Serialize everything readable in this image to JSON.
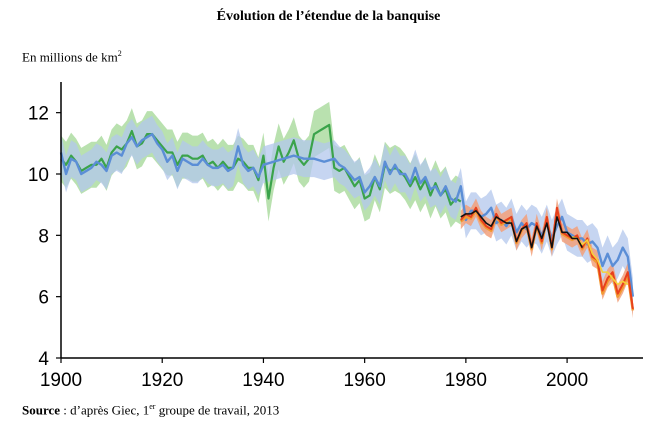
{
  "header": {
    "title": "Évolution de l’étendue de la banquise",
    "unit_prefix": "En millions  de km",
    "unit_sup": "2"
  },
  "footer": {
    "source_label": "Source",
    "source_sep": " : ",
    "source_text_a": "d’après Giec, 1",
    "source_sup": "er",
    "source_text_b": " groupe de travail, 2013"
  },
  "colors": {
    "green": "#3aa34a",
    "green_band": "#a8d99b",
    "blue": "#5b8ed6",
    "blue_band": "#b3c7ec",
    "red": "#e8401c",
    "orange": "#f39a33",
    "yellow": "#f6d23a",
    "black": "#111111"
  },
  "chart_data": {
    "type": "line",
    "xlim": [
      1900,
      2015
    ],
    "ylim": [
      4,
      13
    ],
    "x_ticks": [
      1900,
      1920,
      1940,
      1960,
      1980,
      2000
    ],
    "y_ticks": [
      4,
      6,
      8,
      10,
      12
    ],
    "series": [
      {
        "key": "green",
        "x": [
          1900,
          1901,
          1902,
          1903,
          1904,
          1905,
          1906,
          1907,
          1908,
          1909,
          1910,
          1911,
          1912,
          1913,
          1914,
          1915,
          1916,
          1917,
          1918,
          1919,
          1920,
          1921,
          1922,
          1923,
          1924,
          1925,
          1926,
          1927,
          1928,
          1929,
          1930,
          1931,
          1932,
          1933,
          1934,
          1935,
          1936,
          1937,
          1938,
          1939,
          1940,
          1941,
          1942,
          1943,
          1944,
          1945,
          1946,
          1947,
          1948,
          1949,
          1950,
          1951,
          1952,
          1953,
          1954,
          1955,
          1956,
          1957,
          1958,
          1959,
          1960,
          1961,
          1962,
          1963,
          1964,
          1965,
          1966,
          1967,
          1968,
          1969,
          1970,
          1971,
          1972,
          1973,
          1974,
          1975,
          1976,
          1977,
          1978,
          1979
        ],
        "y": [
          10.5,
          10.3,
          10.6,
          10.4,
          10.1,
          10.2,
          10.3,
          10.3,
          10.5,
          10.2,
          10.7,
          10.9,
          10.8,
          11.0,
          11.4,
          10.9,
          11.0,
          11.3,
          11.3,
          11.1,
          10.9,
          10.7,
          10.7,
          10.3,
          10.6,
          10.6,
          10.5,
          10.5,
          10.6,
          10.3,
          10.4,
          10.2,
          10.4,
          10.2,
          10.2,
          10.5,
          10.4,
          10.2,
          10.2,
          9.8,
          10.6,
          9.2,
          10.2,
          10.9,
          10.4,
          10.7,
          11.1,
          10.5,
          10.3,
          10.5,
          11.3,
          11.4,
          11.5,
          11.6,
          10.2,
          10.1,
          10.2,
          9.9,
          9.6,
          9.8,
          9.2,
          9.3,
          9.9,
          9.5,
          10.3,
          10.1,
          10.2,
          10.1,
          9.9,
          9.6,
          9.9,
          9.5,
          9.8,
          9.3,
          9.7,
          9.3,
          9.5,
          9.0,
          9.2,
          9.1
        ]
      },
      {
        "key": "blue",
        "x": [
          1900,
          1901,
          1902,
          1903,
          1904,
          1905,
          1906,
          1907,
          1908,
          1909,
          1910,
          1911,
          1912,
          1913,
          1914,
          1915,
          1916,
          1917,
          1918,
          1919,
          1920,
          1921,
          1922,
          1923,
          1924,
          1925,
          1926,
          1927,
          1928,
          1929,
          1930,
          1931,
          1932,
          1933,
          1934,
          1935,
          1936,
          1937,
          1938,
          1939,
          1940,
          1942,
          1944,
          1946,
          1948,
          1950,
          1952,
          1954,
          1955,
          1956,
          1957,
          1958,
          1959,
          1960,
          1961,
          1962,
          1963,
          1964,
          1965,
          1966,
          1967,
          1968,
          1969,
          1970,
          1971,
          1972,
          1973,
          1974,
          1975,
          1976,
          1977,
          1978,
          1979,
          1980,
          1981,
          1982,
          1983,
          1984,
          1985,
          1986,
          1987,
          1988,
          1989,
          1990,
          1991,
          1992,
          1993,
          1994,
          1995,
          1996,
          1997,
          1998,
          1999,
          2000,
          2001,
          2002,
          2003,
          2004,
          2005,
          2006,
          2007,
          2008,
          2009,
          2010,
          2011,
          2012,
          2013
        ],
        "y": [
          10.7,
          10.0,
          10.5,
          10.4,
          10.0,
          10.1,
          10.2,
          10.4,
          10.3,
          10.1,
          10.6,
          10.7,
          10.6,
          11.0,
          11.2,
          10.9,
          11.1,
          11.2,
          11.3,
          11.0,
          10.8,
          10.4,
          10.6,
          10.1,
          10.5,
          10.4,
          10.3,
          10.3,
          10.5,
          10.3,
          10.2,
          10.2,
          10.3,
          10.1,
          10.2,
          10.9,
          10.3,
          10.1,
          10.2,
          9.9,
          10.3,
          10.4,
          10.5,
          10.6,
          10.5,
          10.5,
          10.4,
          10.5,
          10.3,
          10.2,
          10.0,
          9.8,
          9.9,
          9.4,
          9.6,
          9.9,
          9.6,
          10.4,
          10.0,
          10.3,
          10.0,
          10.0,
          9.7,
          10.2,
          9.7,
          9.9,
          9.5,
          9.6,
          9.3,
          9.6,
          9.2,
          9.1,
          9.6,
          8.5,
          8.8,
          8.8,
          8.6,
          8.7,
          8.9,
          8.4,
          8.5,
          8.3,
          8.6,
          8.1,
          8.4,
          8.2,
          8.4,
          8.3,
          8.0,
          8.4,
          7.9,
          8.3,
          8.6,
          8.1,
          8.0,
          7.9,
          7.9,
          7.7,
          7.8,
          7.6,
          7.0,
          7.4,
          7.0,
          7.2,
          7.6,
          7.3,
          6.0
        ]
      },
      {
        "key": "red",
        "x": [
          1979,
          1980,
          1981,
          1982,
          1983,
          1984,
          1985,
          1986,
          1987,
          1988,
          1989,
          1990,
          1991,
          1992,
          1993,
          1994,
          1995,
          1996,
          1997,
          1998,
          1999,
          2000,
          2001,
          2002,
          2003,
          2004,
          2005,
          2006,
          2007,
          2008,
          2009,
          2010,
          2011,
          2012,
          2013
        ],
        "y": [
          8.5,
          8.7,
          8.6,
          8.9,
          8.5,
          8.3,
          8.2,
          8.7,
          8.4,
          8.5,
          8.6,
          7.8,
          8.2,
          8.4,
          7.6,
          8.4,
          7.8,
          8.6,
          7.6,
          8.9,
          8.1,
          8.0,
          7.9,
          8.0,
          7.6,
          7.9,
          7.3,
          7.2,
          6.2,
          6.6,
          6.8,
          6.1,
          6.4,
          6.8,
          5.6
        ]
      },
      {
        "key": "orange",
        "x": [
          1979,
          1980,
          1981,
          1982,
          1983,
          1984,
          1985,
          1986,
          1987,
          1988,
          1989,
          1990,
          1991,
          1992,
          1993,
          1994,
          1995,
          1996,
          1997,
          1998,
          1999,
          2000,
          2001,
          2002,
          2003,
          2004,
          2005,
          2006,
          2007,
          2008,
          2009,
          2010,
          2011,
          2012,
          2013
        ],
        "y": [
          8.45,
          8.6,
          8.55,
          8.8,
          8.45,
          8.25,
          8.15,
          8.65,
          8.35,
          8.45,
          8.55,
          7.75,
          8.15,
          8.35,
          7.55,
          8.35,
          7.75,
          8.55,
          7.55,
          8.8,
          8.05,
          7.95,
          7.85,
          7.95,
          7.55,
          7.85,
          7.25,
          7.1,
          6.1,
          6.5,
          6.7,
          6.0,
          6.3,
          6.7,
          5.55
        ]
      },
      {
        "key": "yellow",
        "x": [
          2001,
          2002,
          2003,
          2004,
          2005,
          2006,
          2007,
          2008,
          2009,
          2010,
          2011,
          2012
        ],
        "y": [
          7.95,
          7.9,
          7.7,
          7.85,
          7.4,
          7.2,
          6.8,
          6.8,
          6.6,
          6.4,
          6.5,
          6.4
        ]
      },
      {
        "key": "black",
        "x": [
          1979,
          1980,
          1981,
          1982,
          1983,
          1984,
          1985,
          1986,
          1987,
          1988,
          1989,
          1990,
          1991,
          1992,
          1993,
          1994,
          1995,
          1996,
          1997,
          1998,
          1999,
          2000,
          2001,
          2002,
          2003
        ],
        "y": [
          8.6,
          8.7,
          8.7,
          8.8,
          8.6,
          8.4,
          8.3,
          8.6,
          8.5,
          8.4,
          8.4,
          7.8,
          8.2,
          8.3,
          7.6,
          8.3,
          7.9,
          8.4,
          7.6,
          8.6,
          8.1,
          8.1,
          7.9,
          7.9,
          7.6
        ]
      }
    ],
    "bands": [
      {
        "key": "green_band",
        "x0": 1900,
        "x1": 1979,
        "spread": 0.75
      },
      {
        "key": "blue_band",
        "x0": 1900,
        "x1": 2013,
        "spread": 0.6
      },
      {
        "key": "red_band",
        "x0": 1979,
        "x1": 2013,
        "spread": 0.3
      }
    ]
  }
}
